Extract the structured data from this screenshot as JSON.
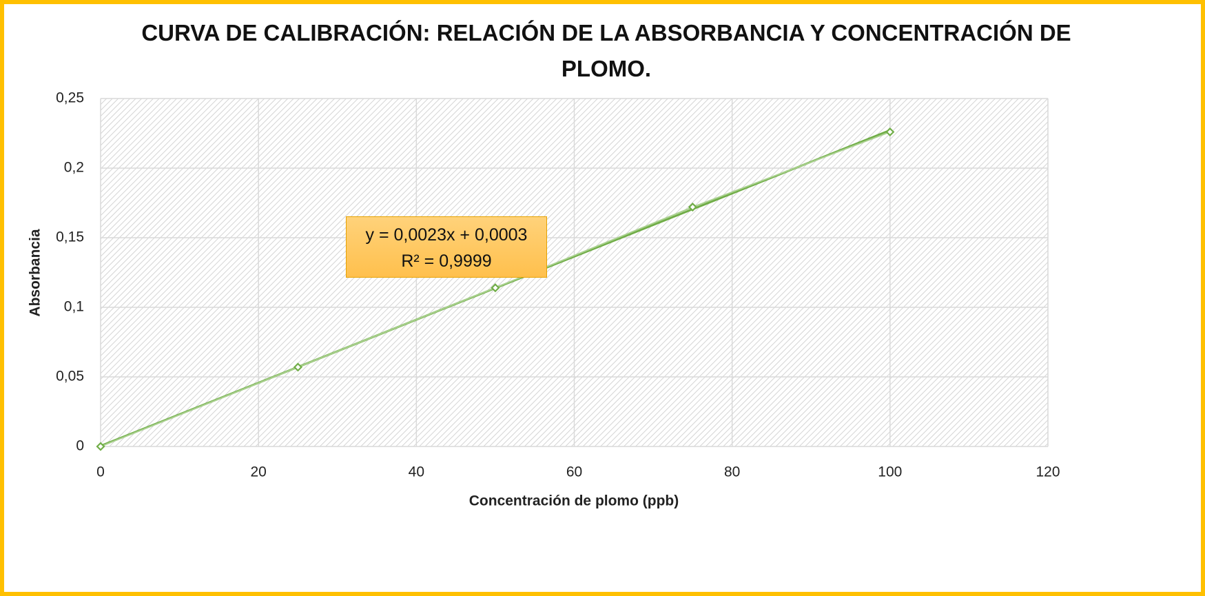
{
  "chart_data": {
    "type": "scatter",
    "title": "CURVA DE CALIBRACIÓN: RELACIÓN DE LA ABSORBANCIA Y CONCENTRACIÓN DE PLOMO.",
    "xlabel": "Concentración de plomo (ppb)",
    "ylabel": "Absorbancia",
    "x": [
      0,
      25,
      50,
      75,
      100
    ],
    "values": [
      0,
      0.057,
      0.114,
      0.172,
      0.226
    ],
    "color": "#70ad47",
    "xlim": [
      0,
      120
    ],
    "xticks": [
      0,
      20,
      40,
      60,
      80,
      100,
      120
    ],
    "ylim": [
      0,
      0.25
    ],
    "yticks": [
      0,
      {
        "value": 0.05,
        "label": "0,05"
      },
      {
        "value": 0.1,
        "label": "0,1"
      },
      {
        "value": 0.15,
        "label": "0,15"
      },
      {
        "value": 0.2,
        "label": "0,2"
      },
      {
        "value": 0.25,
        "label": "0,25"
      }
    ],
    "grid": true,
    "trendline": true,
    "annotations": [
      "y = 0,0023x + 0,0003",
      "R² = 0,9999"
    ]
  }
}
